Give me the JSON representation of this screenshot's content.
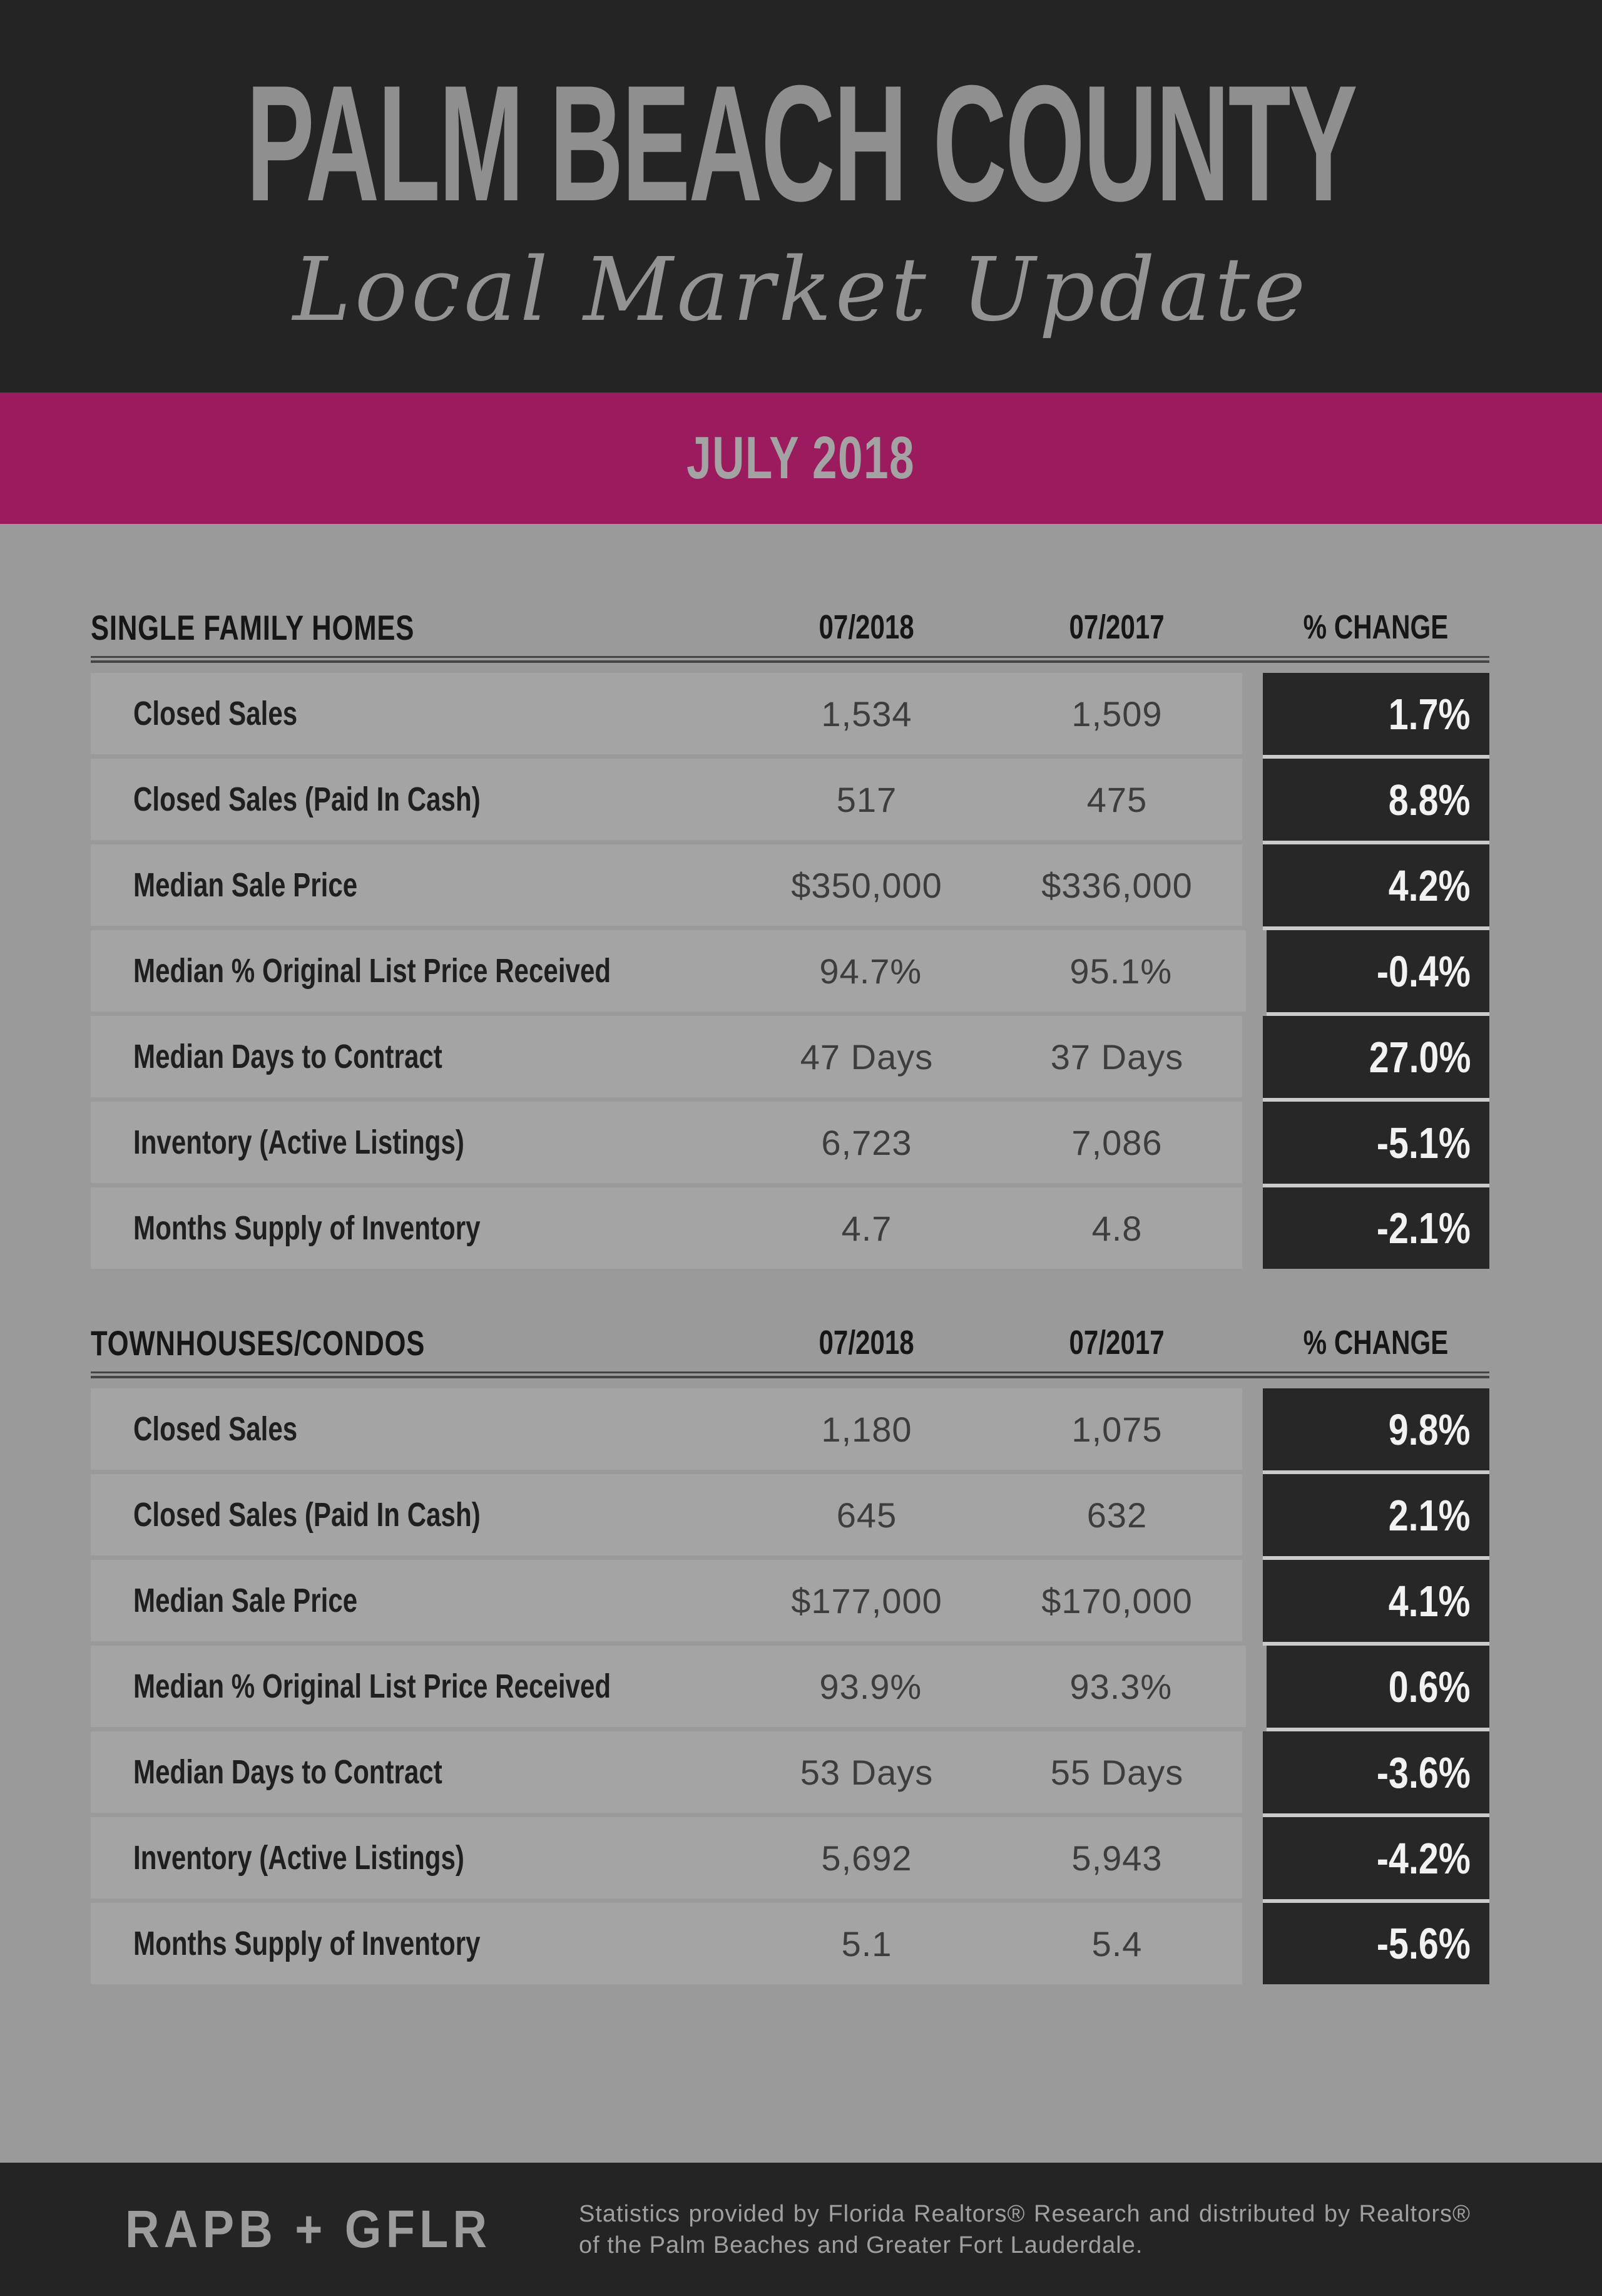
{
  "header": {
    "title": "PALM BEACH COUNTY",
    "subtitle": "Local Market Update",
    "month": "JULY 2018"
  },
  "colors": {
    "accent_pink": "#9c1b5f",
    "dark_panel": "#242424",
    "body_gray": "#9a9a9a",
    "row_gray": "#a4a4a4",
    "change_cell_dark": "#272727"
  },
  "tables": [
    {
      "title": "SINGLE FAMILY HOMES",
      "col_2018": "07/2018",
      "col_2017": "07/2017",
      "col_change": "% CHANGE",
      "rows": [
        {
          "label": "Closed Sales",
          "v2018": "1,534",
          "v2017": "1,509",
          "change": "1.7%"
        },
        {
          "label": "Closed Sales (Paid In Cash)",
          "v2018": "517",
          "v2017": "475",
          "change": "8.8%"
        },
        {
          "label": "Median Sale Price",
          "v2018": "$350,000",
          "v2017": "$336,000",
          "change": "4.2%"
        },
        {
          "label": "Median % Original List Price Received",
          "v2018": "94.7%",
          "v2017": "95.1%",
          "change": "-0.4%"
        },
        {
          "label": "Median Days to Contract",
          "v2018": "47 Days",
          "v2017": "37 Days",
          "change": "27.0%"
        },
        {
          "label": "Inventory (Active Listings)",
          "v2018": "6,723",
          "v2017": "7,086",
          "change": "-5.1%"
        },
        {
          "label": "Months Supply of Inventory",
          "v2018": "4.7",
          "v2017": "4.8",
          "change": "-2.1%"
        }
      ]
    },
    {
      "title": "TOWNHOUSES/CONDOS",
      "col_2018": "07/2018",
      "col_2017": "07/2017",
      "col_change": "% CHANGE",
      "rows": [
        {
          "label": "Closed Sales",
          "v2018": "1,180",
          "v2017": "1,075",
          "change": "9.8%"
        },
        {
          "label": "Closed Sales (Paid In Cash)",
          "v2018": "645",
          "v2017": "632",
          "change": "2.1%"
        },
        {
          "label": "Median Sale Price",
          "v2018": "$177,000",
          "v2017": "$170,000",
          "change": "4.1%"
        },
        {
          "label": "Median % Original List Price Received",
          "v2018": "93.9%",
          "v2017": "93.3%",
          "change": "0.6%"
        },
        {
          "label": "Median Days to Contract",
          "v2018": "53 Days",
          "v2017": "55 Days",
          "change": "-3.6%"
        },
        {
          "label": "Inventory (Active Listings)",
          "v2018": "5,692",
          "v2017": "5,943",
          "change": "-4.2%"
        },
        {
          "label": "Months Supply of Inventory",
          "v2018": "5.1",
          "v2017": "5.4",
          "change": "-5.6%"
        }
      ]
    }
  ],
  "footer": {
    "brand": "RAPB + GFLR",
    "disclaimer": "Statistics provided by Florida Realtors® Research and distributed by Realtors® of the Palm Beaches and Greater Fort Lauderdale."
  }
}
